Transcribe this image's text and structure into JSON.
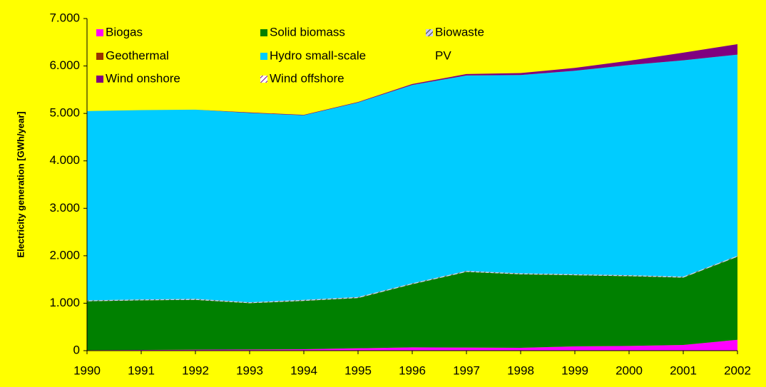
{
  "chart_data": {
    "type": "stacked_area",
    "y_label": "Electricity generation [GWh/year]",
    "categories": [
      "1990",
      "1991",
      "1992",
      "1993",
      "1994",
      "1995",
      "1996",
      "1997",
      "1998",
      "1999",
      "2000",
      "2001",
      "2002"
    ],
    "series": [
      {
        "name": "Biogas",
        "color": "#ff00ff",
        "values": [
          10,
          15,
          20,
          25,
          30,
          50,
          70,
          65,
          60,
          90,
          100,
          120,
          230
        ]
      },
      {
        "name": "Solid biomass",
        "color": "#008000",
        "values": [
          1030,
          1045,
          1050,
          975,
          1020,
          1060,
          1330,
          1595,
          1550,
          1500,
          1470,
          1420,
          1750
        ]
      },
      {
        "name": "Biowaste",
        "color": "#666666",
        "pattern": "hatch",
        "values": [
          20,
          20,
          20,
          20,
          20,
          20,
          20,
          20,
          20,
          20,
          20,
          20,
          20
        ]
      },
      {
        "name": "Geothermal",
        "color": "#993300",
        "values": [
          0,
          0,
          0,
          0,
          0,
          0,
          0,
          0,
          0,
          0,
          0,
          0,
          0
        ]
      },
      {
        "name": "Hydro small-scale",
        "color": "#00ccff",
        "values": [
          3990,
          3990,
          3990,
          3990,
          3890,
          4100,
          4180,
          4120,
          4180,
          4290,
          4430,
          4560,
          4240
        ]
      },
      {
        "name": "PV",
        "color": "#ffff00",
        "values": [
          0,
          0,
          0,
          0,
          0,
          0,
          0,
          0,
          0,
          0,
          0,
          0,
          0
        ]
      },
      {
        "name": "Wind onshore",
        "color": "#800080",
        "values": [
          0,
          0,
          0,
          10,
          10,
          10,
          20,
          30,
          40,
          60,
          90,
          160,
          220
        ]
      },
      {
        "name": "Wind offshore",
        "color": "#800080",
        "pattern": "hatch",
        "values": [
          0,
          0,
          0,
          0,
          0,
          0,
          0,
          0,
          0,
          0,
          0,
          0,
          0
        ]
      }
    ],
    "ylim": [
      0,
      7000
    ],
    "yticks": [
      0,
      {
        "value": 1000,
        "label": "1.000"
      },
      {
        "value": 2000,
        "label": "2.000"
      },
      {
        "value": 3000,
        "label": "3.000"
      },
      {
        "value": 4000,
        "label": "4.000"
      },
      {
        "value": 5000,
        "label": "5.000"
      },
      {
        "value": 6000,
        "label": "6.000"
      },
      {
        "value": 7000,
        "label": "7.000"
      }
    ],
    "background": "#ffff00"
  }
}
